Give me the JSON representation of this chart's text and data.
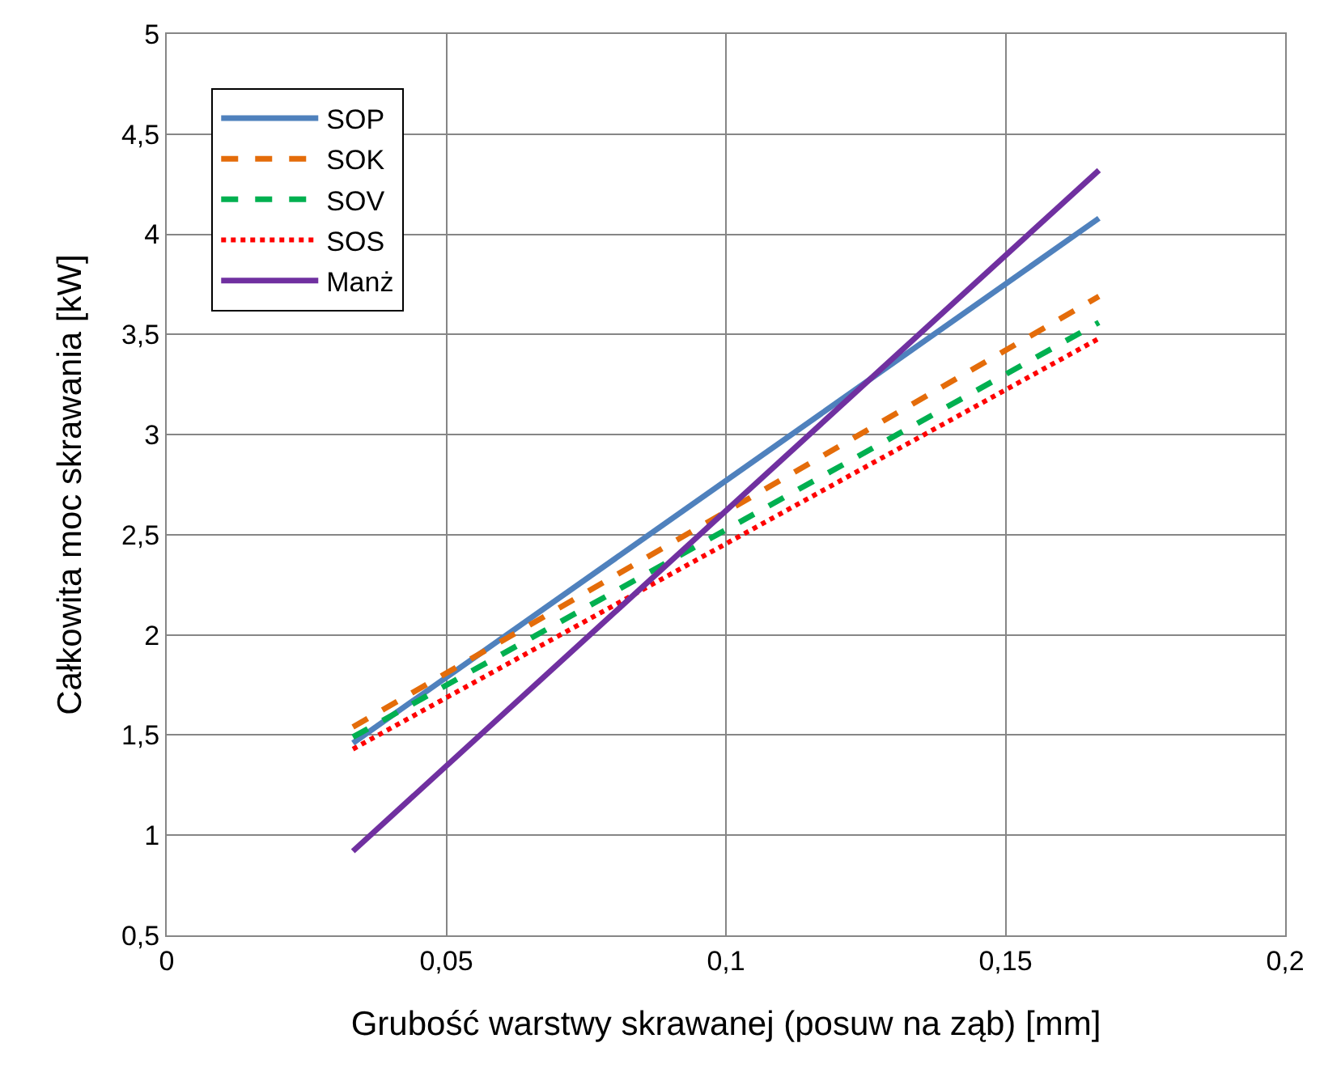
{
  "chart_data": {
    "type": "line",
    "xlabel": "Grubość warstwy skrawanej (posuw na ząb) [mm]",
    "ylabel": "Całkowita moc skrawania [kW]",
    "x": [
      0.0333,
      0.1667
    ],
    "series": [
      {
        "name": "SOP",
        "color": "#4f81bd",
        "values": [
          1.46,
          4.08
        ],
        "line_style": "solid"
      },
      {
        "name": "SOK",
        "color": "#e46c0a",
        "values": [
          1.54,
          3.69
        ],
        "line_style": "dashed"
      },
      {
        "name": "SOV",
        "color": "#00b050",
        "values": [
          1.49,
          3.56
        ],
        "line_style": "dashed"
      },
      {
        "name": "SOS",
        "color": "#ff0000",
        "values": [
          1.43,
          3.48
        ],
        "line_style": "dotted"
      },
      {
        "name": "Manż",
        "color": "#7030a0",
        "values": [
          0.92,
          4.32
        ],
        "line_style": "solid"
      }
    ],
    "xlim": [
      0,
      0.2
    ],
    "xticks": [
      0,
      {
        "value": 0.05,
        "label": "0,05"
      },
      {
        "value": 0.1,
        "label": "0,1"
      },
      {
        "value": 0.15,
        "label": "0,15"
      },
      {
        "value": 0.2,
        "label": "0,2"
      }
    ],
    "ylim": [
      0.5,
      5
    ],
    "yticks": [
      {
        "value": 0.5,
        "label": "0,5"
      },
      1,
      {
        "value": 1.5,
        "label": "1,5"
      },
      2,
      {
        "value": 2.5,
        "label": "2,5"
      },
      3,
      {
        "value": 3.5,
        "label": "3,5"
      },
      4,
      {
        "value": 4.5,
        "label": "4,5"
      },
      5
    ],
    "grid": true,
    "legend": "top left",
    "marker": "none"
  }
}
